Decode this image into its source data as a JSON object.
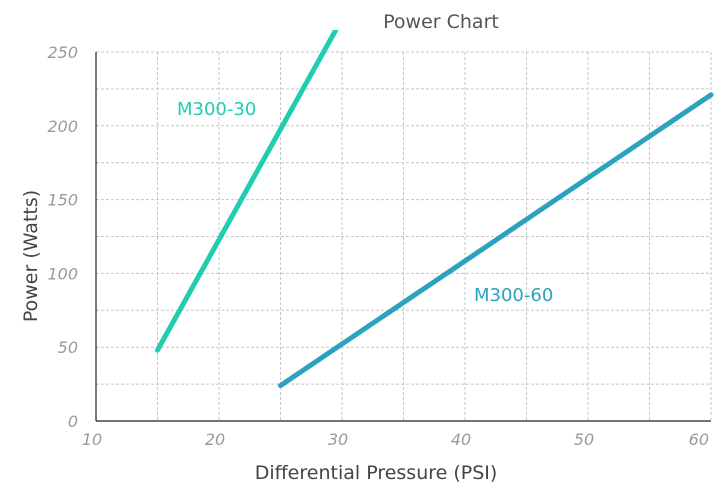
{
  "chart_data": {
    "type": "line",
    "title": "Power Chart",
    "xlabel": "Differential Pressure (PSI)",
    "ylabel": "Power (Watts)",
    "xlim": [
      10,
      60
    ],
    "ylim": [
      0,
      250
    ],
    "x_ticks": [
      10,
      20,
      30,
      40,
      50,
      60
    ],
    "y_ticks": [
      0,
      50,
      100,
      150,
      200,
      250
    ],
    "grid": true,
    "series": [
      {
        "name": "M300-30",
        "color": "#1fcdb0",
        "points": [
          [
            15,
            48
          ],
          [
            29.5,
            265
          ]
        ]
      },
      {
        "name": "M300-60",
        "color": "#2ba3bf",
        "points": [
          [
            25,
            24
          ],
          [
            60,
            221
          ]
        ]
      }
    ]
  }
}
